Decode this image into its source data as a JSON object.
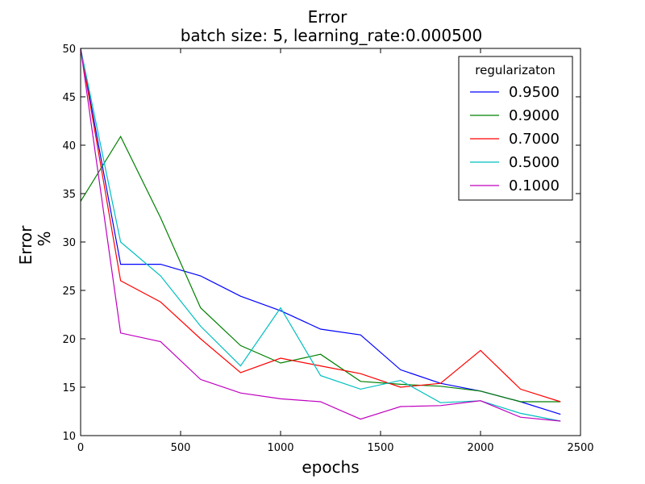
{
  "chart_data": {
    "type": "line",
    "title": "Error",
    "subtitle": "batch size: 5, learning_rate:0.000500",
    "xlabel": "epochs",
    "ylabel_lines": [
      "Error",
      "%"
    ],
    "xlim": [
      0,
      2500
    ],
    "ylim": [
      10,
      50
    ],
    "xticks": [
      0,
      500,
      1000,
      1500,
      2000,
      2500
    ],
    "yticks": [
      10,
      15,
      20,
      25,
      30,
      35,
      40,
      45,
      50
    ],
    "grid": false,
    "legend": {
      "title": "regularizaton",
      "placement": "top-right"
    },
    "x": [
      0,
      200,
      400,
      600,
      800,
      1000,
      1200,
      1400,
      1600,
      1800,
      2000,
      2200,
      2400
    ],
    "series": [
      {
        "name": "0.9500",
        "color": "#0000ff",
        "values": [
          50,
          27.7,
          27.7,
          26.5,
          24.4,
          22.9,
          21.0,
          20.4,
          16.8,
          15.4,
          14.6,
          13.5,
          12.2
        ]
      },
      {
        "name": "0.9000",
        "color": "#008000",
        "values": [
          34.2,
          40.9,
          32.5,
          23.2,
          19.3,
          17.5,
          18.4,
          15.6,
          15.3,
          15.1,
          14.6,
          13.5,
          13.5
        ]
      },
      {
        "name": "0.7000",
        "color": "#ff0000",
        "values": [
          50,
          26.0,
          23.8,
          20.0,
          16.5,
          18.0,
          17.2,
          16.4,
          15.0,
          15.4,
          18.8,
          14.8,
          13.5
        ]
      },
      {
        "name": "0.5000",
        "color": "#00bfbf",
        "values": [
          50,
          30.0,
          26.5,
          21.3,
          17.2,
          23.2,
          16.2,
          14.8,
          15.7,
          13.4,
          13.6,
          12.3,
          11.5
        ]
      },
      {
        "name": "0.1000",
        "color": "#bf00bf",
        "values": [
          50,
          20.6,
          19.7,
          15.8,
          14.4,
          13.8,
          13.5,
          11.7,
          13.0,
          13.1,
          13.6,
          11.9,
          11.5
        ]
      }
    ]
  }
}
